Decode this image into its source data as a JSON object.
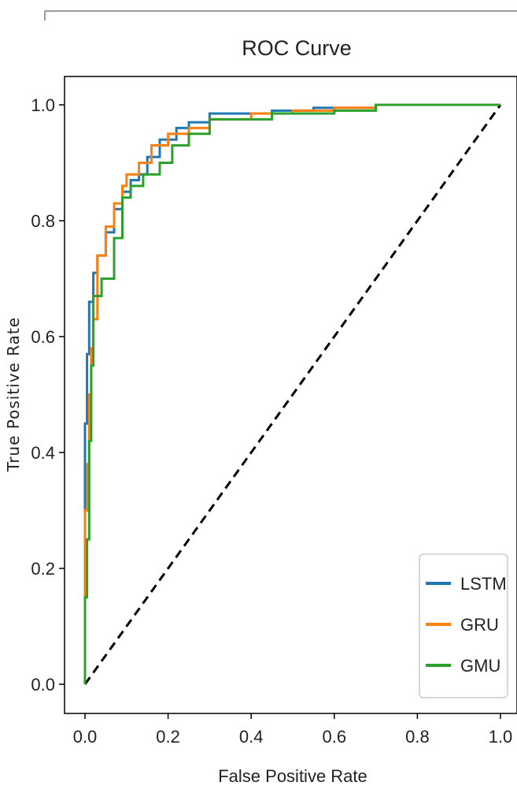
{
  "chart_data": {
    "type": "line",
    "title": "ROC Curve",
    "xlabel": "False Positive Rate",
    "ylabel": "True Positive Rate",
    "xlim": [
      -0.05,
      1.02
    ],
    "ylim": [
      -0.05,
      1.05
    ],
    "xticks": [
      "0.0",
      "0.2",
      "0.4",
      "0.6",
      "0.8",
      "1.0"
    ],
    "yticks": [
      "0.0",
      "0.2",
      "0.4",
      "0.6",
      "0.8",
      "1.0"
    ],
    "grid": false,
    "legend_position": "lower-right",
    "series": [
      {
        "name": "LSTM",
        "color": "#1f77b4",
        "x": [
          0.0,
          0.0,
          0.005,
          0.005,
          0.01,
          0.01,
          0.02,
          0.02,
          0.03,
          0.03,
          0.05,
          0.05,
          0.07,
          0.07,
          0.09,
          0.09,
          0.11,
          0.11,
          0.13,
          0.13,
          0.15,
          0.15,
          0.18,
          0.18,
          0.22,
          0.22,
          0.25,
          0.25,
          0.3,
          0.3,
          0.45,
          0.45,
          0.55,
          0.55,
          0.7,
          0.7,
          1.0
        ],
        "y": [
          0.0,
          0.45,
          0.45,
          0.57,
          0.57,
          0.66,
          0.66,
          0.71,
          0.71,
          0.74,
          0.74,
          0.78,
          0.78,
          0.82,
          0.82,
          0.85,
          0.85,
          0.87,
          0.87,
          0.88,
          0.88,
          0.91,
          0.91,
          0.94,
          0.94,
          0.96,
          0.96,
          0.97,
          0.97,
          0.985,
          0.985,
          0.99,
          0.99,
          0.995,
          0.995,
          1.0,
          1.0
        ]
      },
      {
        "name": "GRU",
        "color": "#ff7f0e",
        "x": [
          0.0,
          0.0,
          0.005,
          0.005,
          0.01,
          0.01,
          0.015,
          0.015,
          0.02,
          0.02,
          0.03,
          0.03,
          0.05,
          0.05,
          0.07,
          0.07,
          0.09,
          0.09,
          0.1,
          0.1,
          0.13,
          0.13,
          0.16,
          0.16,
          0.2,
          0.2,
          0.25,
          0.25,
          0.3,
          0.3,
          0.4,
          0.4,
          0.5,
          0.5,
          0.6,
          0.6,
          0.7,
          0.7,
          1.0
        ],
        "y": [
          0.0,
          0.3,
          0.3,
          0.38,
          0.38,
          0.5,
          0.5,
          0.58,
          0.58,
          0.63,
          0.63,
          0.74,
          0.74,
          0.79,
          0.79,
          0.83,
          0.83,
          0.86,
          0.86,
          0.88,
          0.88,
          0.9,
          0.9,
          0.93,
          0.93,
          0.95,
          0.95,
          0.96,
          0.96,
          0.975,
          0.975,
          0.985,
          0.985,
          0.99,
          0.99,
          0.995,
          0.995,
          1.0,
          1.0
        ]
      },
      {
        "name": "GMU",
        "color": "#2ca02c",
        "x": [
          0.0,
          0.0,
          0.005,
          0.005,
          0.01,
          0.01,
          0.015,
          0.015,
          0.02,
          0.02,
          0.04,
          0.04,
          0.07,
          0.07,
          0.09,
          0.09,
          0.11,
          0.11,
          0.14,
          0.14,
          0.18,
          0.18,
          0.21,
          0.21,
          0.25,
          0.25,
          0.3,
          0.3,
          0.45,
          0.45,
          0.6,
          0.6,
          0.7,
          0.7,
          1.0
        ],
        "y": [
          0.0,
          0.15,
          0.15,
          0.25,
          0.25,
          0.42,
          0.42,
          0.55,
          0.55,
          0.67,
          0.67,
          0.7,
          0.7,
          0.77,
          0.77,
          0.84,
          0.84,
          0.86,
          0.86,
          0.88,
          0.88,
          0.9,
          0.9,
          0.93,
          0.93,
          0.95,
          0.95,
          0.975,
          0.975,
          0.985,
          0.985,
          0.99,
          0.99,
          1.0,
          1.0
        ]
      }
    ],
    "reference_line": {
      "x": [
        0.0,
        1.0
      ],
      "y": [
        0.0,
        1.0
      ],
      "color": "#000000",
      "style": "dashed"
    }
  }
}
